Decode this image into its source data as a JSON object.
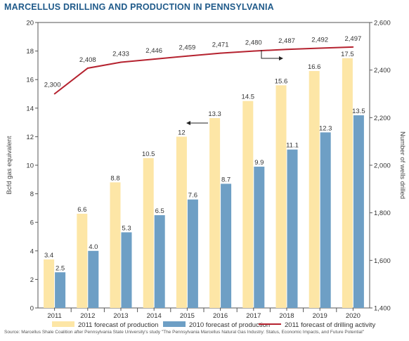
{
  "chart_data": {
    "type": "bar",
    "title": "MARCELLUS DRILLING AND PRODUCTION IN PENNSYLVANIA",
    "categories": [
      "2011",
      "2012",
      "2013",
      "2014",
      "2015",
      "2016",
      "2017",
      "2018",
      "2019",
      "2020"
    ],
    "series": [
      {
        "name": "2011 forecast of production",
        "kind": "bar",
        "axis": "left",
        "color": "#fde6a6",
        "values": [
          3.4,
          6.6,
          8.8,
          10.5,
          12,
          13.3,
          14.5,
          15.6,
          16.6,
          17.5
        ],
        "labels": [
          "3.4",
          "6.6",
          "8.8",
          "10.5",
          "12",
          "13.3",
          "14.5",
          "15.6",
          "16.6",
          "17.5"
        ]
      },
      {
        "name": "2010 forecast of production",
        "kind": "bar",
        "axis": "left",
        "color": "#6e9fc5",
        "values": [
          2.5,
          4.0,
          5.3,
          6.5,
          7.6,
          8.7,
          9.9,
          11.1,
          12.3,
          13.5
        ],
        "labels": [
          "2.5",
          "4.0",
          "5.3",
          "6.5",
          "7.6",
          "8.7",
          "9.9",
          "11.1",
          "12.3",
          "13.5"
        ]
      },
      {
        "name": "2011 forecast of drilling activity",
        "kind": "line",
        "axis": "right",
        "color": "#b5222f",
        "values": [
          2300,
          2408,
          2433,
          2446,
          2459,
          2471,
          2480,
          2487,
          2492,
          2497
        ],
        "labels": [
          "2,300",
          "2,408",
          "2,433",
          "2,446",
          "2,459",
          "2,471",
          "2,480",
          "2,487",
          "2,492",
          "2,497"
        ]
      }
    ],
    "ylabel": "Bcfd gas equivalent",
    "ylabel_right": "Number of wells drilled",
    "ylim": [
      0,
      20
    ],
    "yticks": [
      0,
      2,
      4,
      6,
      8,
      10,
      12,
      14,
      16,
      18,
      20
    ],
    "ylim_right": [
      1400,
      2600
    ],
    "yticks_right": [
      "1,400",
      "1,600",
      "1,800",
      "2,000",
      "2,200",
      "2,400",
      "2,600"
    ],
    "grid": false,
    "legend": "bottom",
    "source": "Source: Marcellus Shale Coalition after Pennsylvania State University's study \"The Pennsylvania Marcellus Natural Gas Industry: Status, Economic Impacts, and Future Potential\""
  }
}
